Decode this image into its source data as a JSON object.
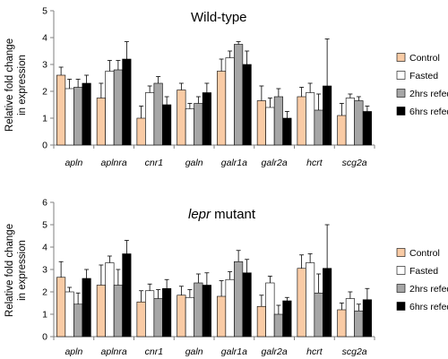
{
  "colors": {
    "Control": "#f9cba5",
    "Fasted": "#ffffff",
    "2hrs refed": "#a6a6a6",
    "6hrs refed": "#000000",
    "bar_stroke": "#000000",
    "axis": "#808080"
  },
  "chart_data": [
    {
      "type": "bar",
      "title": "Wild-type",
      "title_italic": "",
      "title_rest": "",
      "ylabel_line1": "Relative fold change",
      "ylabel_line2": "in expression",
      "ylim": [
        0,
        5
      ],
      "yticks": [
        0,
        1,
        2,
        3,
        4,
        5
      ],
      "grid": false,
      "legend_position": "right",
      "categories": [
        "apln",
        "aplnra",
        "cnr1",
        "galn",
        "galr1a",
        "galr2a",
        "hcrt",
        "scg2a"
      ],
      "series": [
        {
          "name": "Control",
          "values": [
            2.6,
            1.75,
            1.0,
            2.05,
            2.75,
            1.65,
            1.8,
            1.1
          ],
          "errors": [
            0.3,
            0.55,
            0.45,
            0.25,
            0.45,
            0.55,
            0.35,
            0.45
          ]
        },
        {
          "name": "Fasted",
          "values": [
            2.1,
            2.75,
            1.95,
            1.35,
            3.25,
            1.4,
            1.95,
            1.75
          ],
          "errors": [
            0.35,
            0.4,
            0.25,
            0.2,
            0.25,
            0.35,
            0.35,
            0.15
          ]
        },
        {
          "name": "2hrs refed",
          "values": [
            2.15,
            2.8,
            2.3,
            1.55,
            3.75,
            1.8,
            1.3,
            1.65
          ],
          "errors": [
            0.3,
            0.35,
            0.25,
            0.25,
            0.1,
            0.3,
            0.6,
            0.15
          ]
        },
        {
          "name": "6hrs refed",
          "values": [
            2.3,
            3.2,
            1.5,
            1.95,
            3.0,
            1.0,
            2.2,
            1.25
          ],
          "errors": [
            0.3,
            0.65,
            0.3,
            0.35,
            0.5,
            0.25,
            1.75,
            0.2
          ]
        }
      ]
    },
    {
      "type": "bar",
      "title": "",
      "title_italic": "lepr",
      "title_rest": " mutant",
      "ylabel_line1": "Relative fold change",
      "ylabel_line2": "in expression",
      "ylim": [
        0,
        6
      ],
      "yticks": [
        0,
        1,
        2,
        3,
        4,
        5,
        6
      ],
      "grid": false,
      "legend_position": "right",
      "categories": [
        "apln",
        "aplnra",
        "cnr1",
        "galn",
        "galr1a",
        "galr2a",
        "hcrt",
        "scg2a"
      ],
      "series": [
        {
          "name": "Control",
          "values": [
            2.65,
            2.3,
            1.55,
            1.85,
            1.8,
            1.35,
            3.05,
            1.2
          ],
          "errors": [
            0.7,
            0.9,
            0.5,
            0.4,
            0.7,
            0.5,
            0.6,
            0.3
          ]
        },
        {
          "name": "Fasted",
          "values": [
            2.0,
            3.3,
            2.05,
            1.75,
            2.55,
            2.4,
            3.3,
            1.7
          ],
          "errors": [
            0.2,
            0.3,
            0.3,
            0.35,
            0.35,
            0.3,
            0.4,
            0.3
          ]
        },
        {
          "name": "2hrs refed",
          "values": [
            1.45,
            2.3,
            1.7,
            2.4,
            3.35,
            1.0,
            1.95,
            1.15
          ],
          "errors": [
            0.5,
            0.7,
            0.4,
            0.4,
            0.5,
            0.4,
            0.85,
            0.3
          ]
        },
        {
          "name": "6hrs refed",
          "values": [
            2.6,
            3.7,
            2.15,
            2.3,
            2.85,
            1.6,
            3.05,
            1.65
          ],
          "errors": [
            0.4,
            0.6,
            0.4,
            0.55,
            0.6,
            0.15,
            1.95,
            0.5
          ]
        }
      ]
    }
  ]
}
